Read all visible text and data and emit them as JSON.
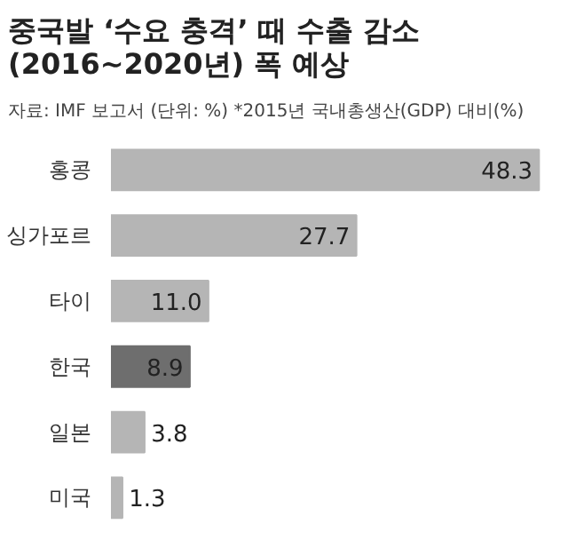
{
  "chart_data": {
    "type": "bar",
    "orientation": "horizontal",
    "title": "중국발 ‘수요 충격’ 때 수출 감소\n(2016~2020년) 폭 예상",
    "subtitle": "자료: IMF 보고서    (단위: %)  *2015년 국내총생산(GDP) 대비(%)",
    "categories": [
      "홍콩",
      "싱가포르",
      "타이",
      "한국",
      "일본",
      "미국"
    ],
    "values": [
      48.3,
      27.7,
      11.0,
      8.9,
      3.8,
      1.3
    ],
    "colors": [
      "#b5b5b5",
      "#b5b5b5",
      "#b5b5b5",
      "#6e6e6e",
      "#b5b5b5",
      "#b5b5b5"
    ],
    "value_labels": [
      "48.3",
      "27.7",
      "11.0",
      "8.9",
      "3.8",
      "1.3"
    ],
    "grid": false
  }
}
